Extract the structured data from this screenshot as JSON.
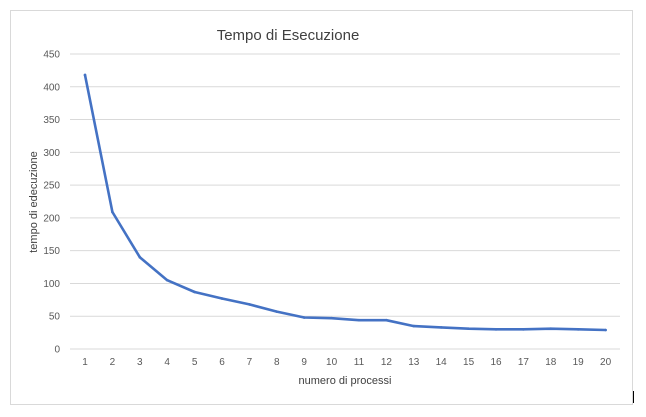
{
  "chart_data": {
    "type": "line",
    "title": "Tempo di Esecuzione",
    "xlabel": "numero di processi",
    "ylabel": "tempo di edecuzione",
    "x": [
      1,
      2,
      3,
      4,
      5,
      6,
      7,
      8,
      9,
      10,
      11,
      12,
      13,
      14,
      15,
      16,
      17,
      18,
      19,
      20
    ],
    "series": [
      {
        "values": [
          418,
          209,
          140,
          105,
          87,
          77,
          68,
          57,
          48,
          47,
          44,
          44,
          35,
          33,
          31,
          30,
          30,
          31,
          30,
          29
        ],
        "color": "#4472c4"
      }
    ],
    "ylim": [
      0,
      450
    ],
    "yticks": [
      0,
      50,
      100,
      150,
      200,
      250,
      300,
      350,
      400,
      450
    ],
    "grid": "horizontal",
    "legend": "none"
  }
}
